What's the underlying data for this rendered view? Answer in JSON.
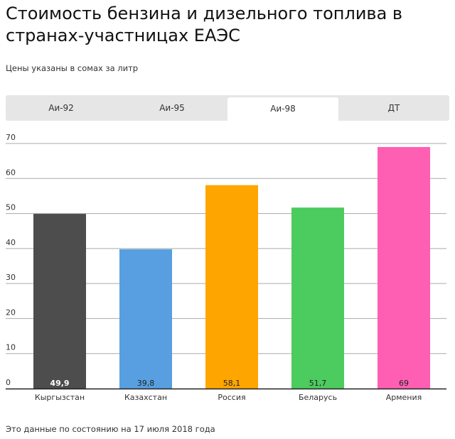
{
  "title": "Стоимость бензина и дизельного топлива в странах-участницах ЕАЭС",
  "subtitle": "Цены указаны в сомах за литр",
  "tabs": [
    {
      "label": "Аи-92"
    },
    {
      "label": "Аи-95"
    },
    {
      "label": "Аи-98",
      "active": true
    },
    {
      "label": "ДТ"
    }
  ],
  "note": "Это данные по состоянию на 17 июля 2018 года",
  "chart_data": {
    "type": "bar",
    "title": "Аи-98",
    "categories": [
      "Кыргызстан",
      "Казахстан",
      "Россия",
      "Беларусь",
      "Армения"
    ],
    "values": [
      49.9,
      39.8,
      58.1,
      51.7,
      69
    ],
    "value_labels": [
      "49,9",
      "39,8",
      "58,1",
      "51,7",
      "69"
    ],
    "colors": [
      "#4d4d4d",
      "#579fe0",
      "#ffa500",
      "#4ccb5e",
      "#ff5fb3"
    ],
    "label_colors": [
      "#ffffff",
      "#222222",
      "#222222",
      "#222222",
      "#222222"
    ],
    "ylim": [
      0,
      70
    ],
    "yticks": [
      0,
      10,
      20,
      30,
      40,
      50,
      60,
      70
    ],
    "grid": true,
    "xlabel": "",
    "ylabel": ""
  }
}
